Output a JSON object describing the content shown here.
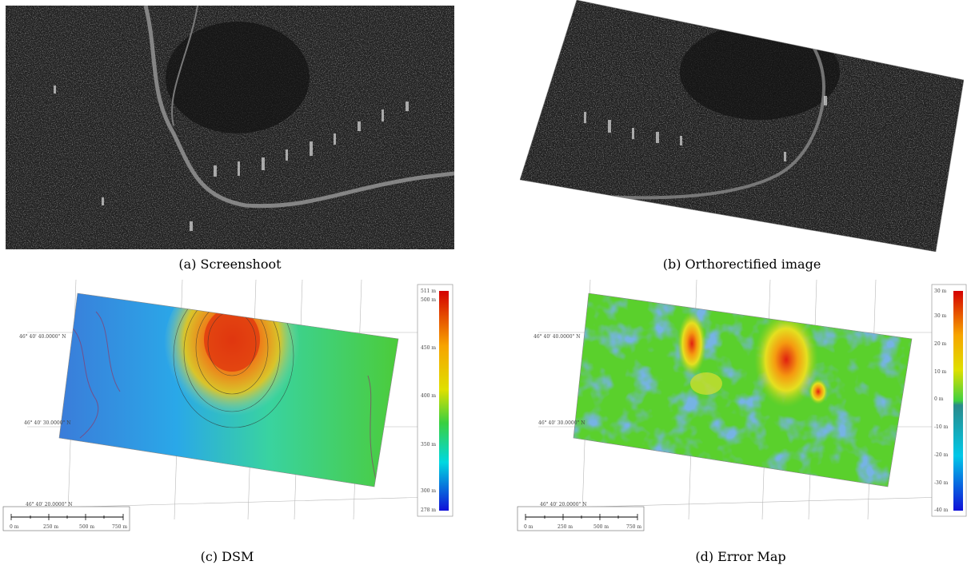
{
  "captions": {
    "a": "(a)  Screenshoot",
    "b": "(b)  Orthorectified image",
    "c": "(c)  DSM",
    "d": "(d)  Error Map"
  },
  "dsm": {
    "colorbar_labels": [
      "511 m",
      "500 m",
      "450 m",
      "400 m",
      "350 m",
      "300 m",
      "278 m"
    ],
    "lat_labels": [
      "46° 40' 40.0000\" N",
      "46° 40' 30.0000\" N",
      "46° 40' 20.0000\" N"
    ],
    "scalebar_labels": [
      "0 m",
      "250 m",
      "500 m",
      "750 m"
    ]
  },
  "error_map": {
    "colorbar_labels": [
      "30 m",
      "30 m",
      "20 m",
      "10 m",
      "0 m",
      "-10 m",
      "-20 m",
      "-30 m",
      "-40 m"
    ],
    "lat_labels": [
      "46° 40' 40.0000\" N",
      "46° 40' 30.0000\" N",
      "46° 40' 20.0000\" N"
    ],
    "scalebar_labels": [
      "0 m",
      "250 m",
      "500 m",
      "750 m"
    ]
  }
}
